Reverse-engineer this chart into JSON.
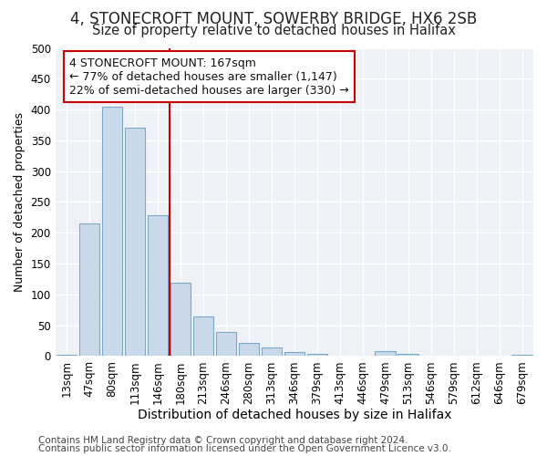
{
  "title1": "4, STONECROFT MOUNT, SOWERBY BRIDGE, HX6 2SB",
  "title2": "Size of property relative to detached houses in Halifax",
  "xlabel": "Distribution of detached houses by size in Halifax",
  "ylabel": "Number of detached properties",
  "categories": [
    "13sqm",
    "47sqm",
    "80sqm",
    "113sqm",
    "146sqm",
    "180sqm",
    "213sqm",
    "246sqm",
    "280sqm",
    "313sqm",
    "346sqm",
    "379sqm",
    "413sqm",
    "446sqm",
    "479sqm",
    "513sqm",
    "546sqm",
    "579sqm",
    "612sqm",
    "646sqm",
    "679sqm"
  ],
  "values": [
    2,
    215,
    405,
    370,
    228,
    119,
    65,
    39,
    21,
    14,
    7,
    3,
    1,
    0,
    8,
    3,
    1,
    0,
    1,
    0,
    2
  ],
  "bar_color": "#c9d9ea",
  "bar_edge_color": "#7aaac8",
  "vline_color": "#cc0000",
  "vline_x_index": 5,
  "annotation_text": "4 STONECROFT MOUNT: 167sqm\n← 77% of detached houses are smaller (1,147)\n22% of semi-detached houses are larger (330) →",
  "annotation_box_facecolor": "#ffffff",
  "annotation_box_edgecolor": "#cc0000",
  "ylim": [
    0,
    500
  ],
  "yticks": [
    0,
    50,
    100,
    150,
    200,
    250,
    300,
    350,
    400,
    450,
    500
  ],
  "plot_bg_color": "#eef2f7",
  "footer1": "Contains HM Land Registry data © Crown copyright and database right 2024.",
  "footer2": "Contains public sector information licensed under the Open Government Licence v3.0.",
  "title1_fontsize": 12,
  "title2_fontsize": 10.5,
  "xlabel_fontsize": 10,
  "ylabel_fontsize": 9,
  "tick_fontsize": 8.5,
  "annotation_fontsize": 9,
  "footer_fontsize": 7.5
}
